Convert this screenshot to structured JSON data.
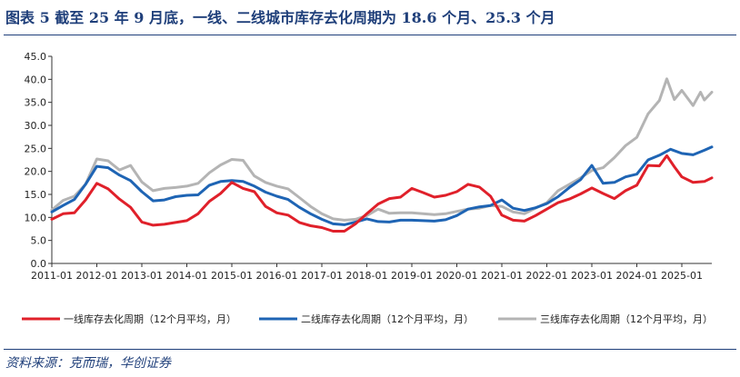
{
  "title": "图表 5   截至 25 年 9 月底，一线、二线城市库存去化周期为 18.6 个月、25.3 个月",
  "source": "资料来源：克而瑞，华创证券",
  "chart_data": {
    "type": "line",
    "title": "图表 5   截至 25 年 9 月底，一线、二线城市库存去化周期为 18.6 个月、25.3 个月",
    "xlabel": "",
    "ylabel": "",
    "ylim": [
      0,
      45
    ],
    "yticks": [
      "0.0",
      "5.0",
      "10.0",
      "15.0",
      "20.0",
      "25.0",
      "30.0",
      "35.0",
      "40.0",
      "45.0"
    ],
    "xticks": [
      "2011-01",
      "2012-01",
      "2013-01",
      "2014-01",
      "2015-01",
      "2016-01",
      "2017-01",
      "2018-01",
      "2019-01",
      "2020-01",
      "2021-01",
      "2022-01",
      "2023-01",
      "2024-01",
      "2025-01"
    ],
    "x_start": "2011-01",
    "x_end": "2025-09",
    "grid": false,
    "legend_position": "bottom",
    "series": [
      {
        "name": "一线库存去化周期（12个月平均，月）",
        "color": "#e0202a",
        "points": [
          [
            "2011-01",
            9.6
          ],
          [
            "2011-04",
            10.8
          ],
          [
            "2011-07",
            11.0
          ],
          [
            "2011-10",
            13.8
          ],
          [
            "2012-01",
            17.4
          ],
          [
            "2012-04",
            16.2
          ],
          [
            "2012-07",
            14.0
          ],
          [
            "2012-10",
            12.2
          ],
          [
            "2013-01",
            9.0
          ],
          [
            "2013-04",
            8.3
          ],
          [
            "2013-07",
            8.5
          ],
          [
            "2013-10",
            8.9
          ],
          [
            "2014-01",
            9.3
          ],
          [
            "2014-04",
            10.8
          ],
          [
            "2014-07",
            13.5
          ],
          [
            "2014-10",
            15.2
          ],
          [
            "2015-01",
            17.6
          ],
          [
            "2015-04",
            16.3
          ],
          [
            "2015-07",
            15.6
          ],
          [
            "2015-10",
            12.4
          ],
          [
            "2016-01",
            11.0
          ],
          [
            "2016-04",
            10.5
          ],
          [
            "2016-07",
            8.9
          ],
          [
            "2016-10",
            8.2
          ],
          [
            "2017-01",
            7.8
          ],
          [
            "2017-04",
            7.0
          ],
          [
            "2017-07",
            7.0
          ],
          [
            "2017-10",
            8.6
          ],
          [
            "2018-01",
            10.8
          ],
          [
            "2018-04",
            12.9
          ],
          [
            "2018-07",
            14.1
          ],
          [
            "2018-10",
            14.4
          ],
          [
            "2019-01",
            16.3
          ],
          [
            "2019-04",
            15.4
          ],
          [
            "2019-07",
            14.4
          ],
          [
            "2019-10",
            14.8
          ],
          [
            "2020-01",
            15.6
          ],
          [
            "2020-04",
            17.2
          ],
          [
            "2020-07",
            16.6
          ],
          [
            "2020-10",
            14.6
          ],
          [
            "2021-01",
            10.5
          ],
          [
            "2021-04",
            9.4
          ],
          [
            "2021-07",
            9.2
          ],
          [
            "2021-10",
            10.4
          ],
          [
            "2022-01",
            11.8
          ],
          [
            "2022-04",
            13.2
          ],
          [
            "2022-07",
            14.0
          ],
          [
            "2022-10",
            15.1
          ],
          [
            "2023-01",
            16.4
          ],
          [
            "2023-04",
            15.2
          ],
          [
            "2023-07",
            14.1
          ],
          [
            "2023-10",
            15.8
          ],
          [
            "2024-01",
            17.0
          ],
          [
            "2024-04",
            21.3
          ],
          [
            "2024-07",
            21.2
          ],
          [
            "2024-09",
            23.4
          ],
          [
            "2024-11",
            21.0
          ],
          [
            "2025-01",
            18.8
          ],
          [
            "2025-04",
            17.6
          ],
          [
            "2025-07",
            17.8
          ],
          [
            "2025-09",
            18.6
          ]
        ]
      },
      {
        "name": "二线库存去化周期（12个月平均，月）",
        "color": "#1e64b4",
        "points": [
          [
            "2011-01",
            11.2
          ],
          [
            "2011-04",
            12.6
          ],
          [
            "2011-07",
            13.9
          ],
          [
            "2011-10",
            17.2
          ],
          [
            "2012-01",
            21.1
          ],
          [
            "2012-04",
            20.8
          ],
          [
            "2012-07",
            19.2
          ],
          [
            "2012-10",
            18.0
          ],
          [
            "2013-01",
            15.6
          ],
          [
            "2013-04",
            13.6
          ],
          [
            "2013-07",
            13.8
          ],
          [
            "2013-10",
            14.5
          ],
          [
            "2014-01",
            14.8
          ],
          [
            "2014-04",
            14.9
          ],
          [
            "2014-07",
            17.0
          ],
          [
            "2014-10",
            17.8
          ],
          [
            "2015-01",
            18.0
          ],
          [
            "2015-04",
            17.8
          ],
          [
            "2015-07",
            16.8
          ],
          [
            "2015-10",
            15.5
          ],
          [
            "2016-01",
            14.6
          ],
          [
            "2016-04",
            13.9
          ],
          [
            "2016-07",
            12.2
          ],
          [
            "2016-10",
            10.8
          ],
          [
            "2017-01",
            9.6
          ],
          [
            "2017-04",
            8.6
          ],
          [
            "2017-07",
            8.4
          ],
          [
            "2017-10",
            9.0
          ],
          [
            "2018-01",
            9.7
          ],
          [
            "2018-04",
            9.1
          ],
          [
            "2018-07",
            9.0
          ],
          [
            "2018-10",
            9.4
          ],
          [
            "2019-01",
            9.4
          ],
          [
            "2019-04",
            9.3
          ],
          [
            "2019-07",
            9.2
          ],
          [
            "2019-10",
            9.5
          ],
          [
            "2020-01",
            10.4
          ],
          [
            "2020-04",
            11.8
          ],
          [
            "2020-07",
            12.3
          ],
          [
            "2020-10",
            12.6
          ],
          [
            "2021-01",
            13.8
          ],
          [
            "2021-04",
            12.0
          ],
          [
            "2021-07",
            11.5
          ],
          [
            "2021-10",
            12.1
          ],
          [
            "2022-01",
            13.0
          ],
          [
            "2022-04",
            14.5
          ],
          [
            "2022-07",
            16.5
          ],
          [
            "2022-10",
            18.2
          ],
          [
            "2023-01",
            21.3
          ],
          [
            "2023-04",
            17.4
          ],
          [
            "2023-07",
            17.6
          ],
          [
            "2023-10",
            18.8
          ],
          [
            "2024-01",
            19.4
          ],
          [
            "2024-04",
            22.5
          ],
          [
            "2024-07",
            23.5
          ],
          [
            "2024-10",
            24.8
          ],
          [
            "2025-01",
            23.9
          ],
          [
            "2025-04",
            23.6
          ],
          [
            "2025-07",
            24.6
          ],
          [
            "2025-09",
            25.3
          ]
        ]
      },
      {
        "name": "三线库存去化周期（12个月平均，月）",
        "color": "#b4b4b4",
        "points": [
          [
            "2011-01",
            11.6
          ],
          [
            "2011-04",
            13.7
          ],
          [
            "2011-07",
            14.6
          ],
          [
            "2011-10",
            17.2
          ],
          [
            "2012-01",
            22.7
          ],
          [
            "2012-04",
            22.3
          ],
          [
            "2012-07",
            20.3
          ],
          [
            "2012-10",
            21.3
          ],
          [
            "2013-01",
            17.7
          ],
          [
            "2013-04",
            15.8
          ],
          [
            "2013-07",
            16.3
          ],
          [
            "2013-10",
            16.5
          ],
          [
            "2014-01",
            16.8
          ],
          [
            "2014-04",
            17.4
          ],
          [
            "2014-07",
            19.7
          ],
          [
            "2014-10",
            21.4
          ],
          [
            "2015-01",
            22.6
          ],
          [
            "2015-04",
            22.4
          ],
          [
            "2015-07",
            19.0
          ],
          [
            "2015-10",
            17.6
          ],
          [
            "2016-01",
            16.8
          ],
          [
            "2016-04",
            16.2
          ],
          [
            "2016-07",
            14.3
          ],
          [
            "2016-10",
            12.4
          ],
          [
            "2017-01",
            10.8
          ],
          [
            "2017-04",
            9.7
          ],
          [
            "2017-07",
            9.4
          ],
          [
            "2017-10",
            9.6
          ],
          [
            "2018-01",
            10.4
          ],
          [
            "2018-04",
            11.8
          ],
          [
            "2018-07",
            10.9
          ],
          [
            "2018-10",
            11.0
          ],
          [
            "2019-01",
            11.0
          ],
          [
            "2019-04",
            10.8
          ],
          [
            "2019-07",
            10.6
          ],
          [
            "2019-10",
            10.8
          ],
          [
            "2020-01",
            11.3
          ],
          [
            "2020-04",
            11.8
          ],
          [
            "2020-07",
            12.0
          ],
          [
            "2020-10",
            12.6
          ],
          [
            "2021-01",
            12.4
          ],
          [
            "2021-04",
            11.2
          ],
          [
            "2021-07",
            10.8
          ],
          [
            "2021-10",
            12.0
          ],
          [
            "2022-01",
            13.2
          ],
          [
            "2022-04",
            15.8
          ],
          [
            "2022-07",
            17.2
          ],
          [
            "2022-10",
            18.6
          ],
          [
            "2023-01",
            20.2
          ],
          [
            "2023-04",
            20.8
          ],
          [
            "2023-07",
            23.0
          ],
          [
            "2023-10",
            25.6
          ],
          [
            "2024-01",
            27.4
          ],
          [
            "2024-04",
            32.5
          ],
          [
            "2024-07",
            35.4
          ],
          [
            "2024-09",
            40.1
          ],
          [
            "2024-11",
            35.6
          ],
          [
            "2025-01",
            37.6
          ],
          [
            "2025-04",
            34.3
          ],
          [
            "2025-06",
            37.2
          ],
          [
            "2025-07",
            35.5
          ],
          [
            "2025-09",
            37.2
          ]
        ]
      }
    ]
  }
}
